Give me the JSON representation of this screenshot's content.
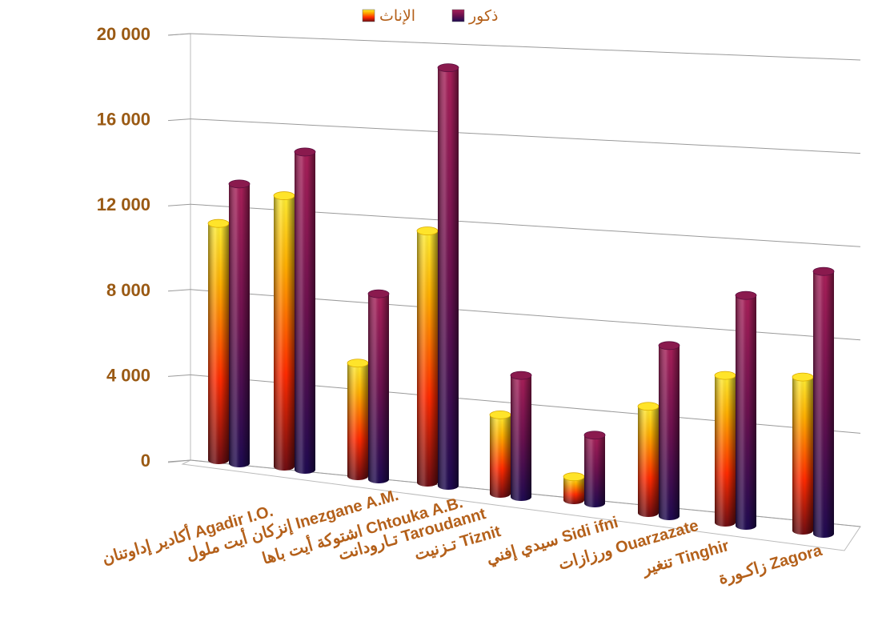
{
  "chart_data": {
    "type": "bar",
    "categories": [
      "أكادير إداوتنان Agadir I.O.",
      "إنزكان أيت ملول Inezgane A.M.",
      "اشتوكة أيت باها Chtouka A.B.",
      "تـارودانت Taroudannt",
      "تـزنيت Tiznit",
      "سيدي إفني Sidi ifni",
      "ورزازات Ouarzazate",
      "تنغير Tinghir",
      "زاكـورة Zagora"
    ],
    "series": [
      {
        "name": "الإناث",
        "values": [
          11100,
          12700,
          5300,
          11800,
          3700,
          1100,
          5000,
          6900,
          7200
        ]
      },
      {
        "name": "ذكور",
        "values": [
          13100,
          14900,
          8700,
          19600,
          5700,
          3200,
          8000,
          10800,
          12300
        ]
      }
    ],
    "yticks": [
      "0",
      "4 000",
      "8 000",
      "12 000",
      "16 000",
      "20 000"
    ],
    "ylim": [
      0,
      20000
    ],
    "grid": true,
    "legend_position": "top",
    "colors": {
      "female_light": "#ffee33",
      "female_mid": "#ff2a00",
      "female_dark": "#6e0d12",
      "male_light": "#a81f58",
      "male_mid": "#6a104e",
      "male_dark": "#1e0a50",
      "axis_text": "#9a5a14",
      "label_text": "#b4601a"
    }
  }
}
